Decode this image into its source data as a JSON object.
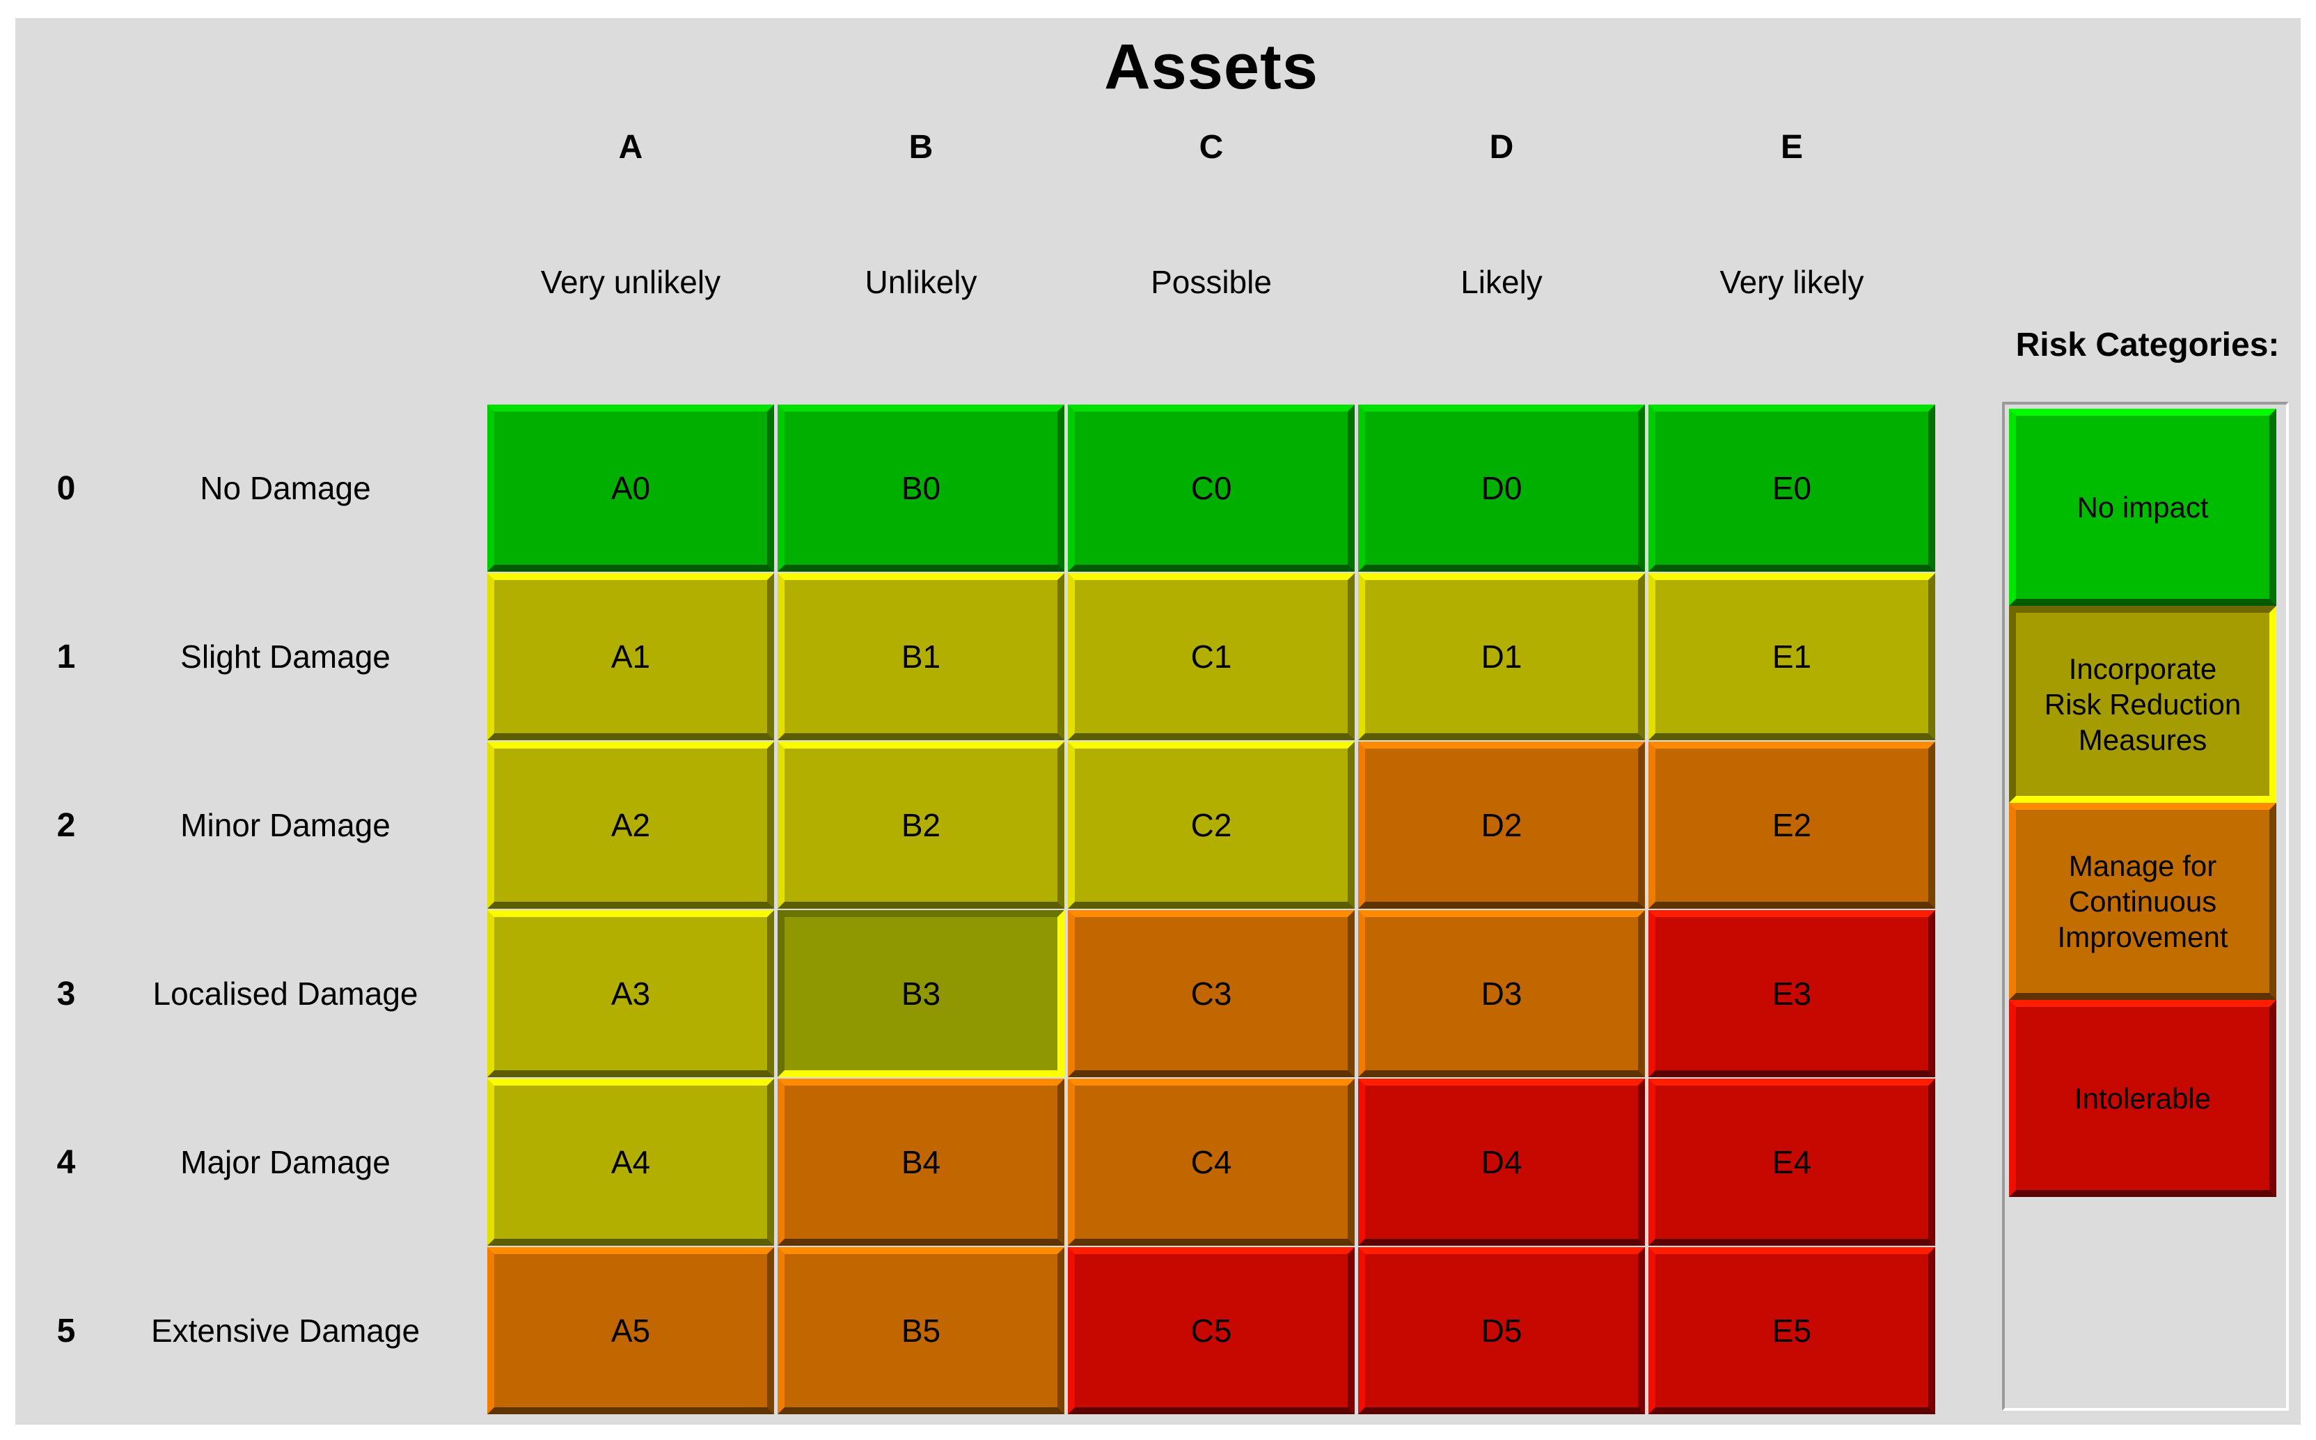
{
  "title": "Assets",
  "columns": [
    {
      "letter": "A",
      "likelihood": "Very unlikely"
    },
    {
      "letter": "B",
      "likelihood": "Unlikely"
    },
    {
      "letter": "C",
      "likelihood": "Possible"
    },
    {
      "letter": "D",
      "likelihood": "Likely"
    },
    {
      "letter": "E",
      "likelihood": "Very likely"
    }
  ],
  "rows": [
    {
      "number": "0",
      "label": "No Damage"
    },
    {
      "number": "1",
      "label": "Slight Damage"
    },
    {
      "number": "2",
      "label": "Minor Damage"
    },
    {
      "number": "3",
      "label": "Localised Damage"
    },
    {
      "number": "4",
      "label": "Major Damage"
    },
    {
      "number": "5",
      "label": "Extensive Damage"
    }
  ],
  "matrix": {
    "selected_cell": "B3",
    "cells": [
      [
        {
          "id": "A0",
          "risk": "green"
        },
        {
          "id": "B0",
          "risk": "green"
        },
        {
          "id": "C0",
          "risk": "green"
        },
        {
          "id": "D0",
          "risk": "green"
        },
        {
          "id": "E0",
          "risk": "green"
        }
      ],
      [
        {
          "id": "A1",
          "risk": "yellow"
        },
        {
          "id": "B1",
          "risk": "yellow"
        },
        {
          "id": "C1",
          "risk": "yellow"
        },
        {
          "id": "D1",
          "risk": "yellow"
        },
        {
          "id": "E1",
          "risk": "yellow"
        }
      ],
      [
        {
          "id": "A2",
          "risk": "yellow"
        },
        {
          "id": "B2",
          "risk": "yellow"
        },
        {
          "id": "C2",
          "risk": "yellow"
        },
        {
          "id": "D2",
          "risk": "orange"
        },
        {
          "id": "E2",
          "risk": "orange"
        }
      ],
      [
        {
          "id": "A3",
          "risk": "yellow"
        },
        {
          "id": "B3",
          "risk": "selected"
        },
        {
          "id": "C3",
          "risk": "orange"
        },
        {
          "id": "D3",
          "risk": "orange"
        },
        {
          "id": "E3",
          "risk": "red"
        }
      ],
      [
        {
          "id": "A4",
          "risk": "yellow"
        },
        {
          "id": "B4",
          "risk": "orange"
        },
        {
          "id": "C4",
          "risk": "orange"
        },
        {
          "id": "D4",
          "risk": "red"
        },
        {
          "id": "E4",
          "risk": "red"
        }
      ],
      [
        {
          "id": "A5",
          "risk": "orange"
        },
        {
          "id": "B5",
          "risk": "orange"
        },
        {
          "id": "C5",
          "risk": "red"
        },
        {
          "id": "D5",
          "risk": "red"
        },
        {
          "id": "E5",
          "risk": "red"
        }
      ]
    ]
  },
  "legend": {
    "title": "Risk Categories:",
    "items": [
      {
        "name": "no-impact",
        "lines": [
          "No impact"
        ],
        "style": "legend-green"
      },
      {
        "name": "incorporate-risk-reduction-measures",
        "lines": [
          "Incorporate",
          "Risk Reduction",
          "Measures"
        ],
        "style": "legend-olive"
      },
      {
        "name": "manage-for-continuous-improvement",
        "lines": [
          "Manage for",
          "Continuous",
          "Improvement"
        ],
        "style": "legend-orange"
      },
      {
        "name": "intolerable",
        "lines": [
          "Intolerable"
        ],
        "style": "legend-red"
      }
    ]
  },
  "colors": {
    "page_bg": "#ffffff",
    "canvas_bg": "#dcdcdc",
    "risk_green": "#00af00",
    "risk_yellow": "#b2af00",
    "risk_orange": "#c26700",
    "risk_red": "#c60800",
    "selected_cell_fill": "#8f9800",
    "selected_highlight": "#ffff00",
    "legend_olive": "#a49c00",
    "text": "#000000"
  }
}
